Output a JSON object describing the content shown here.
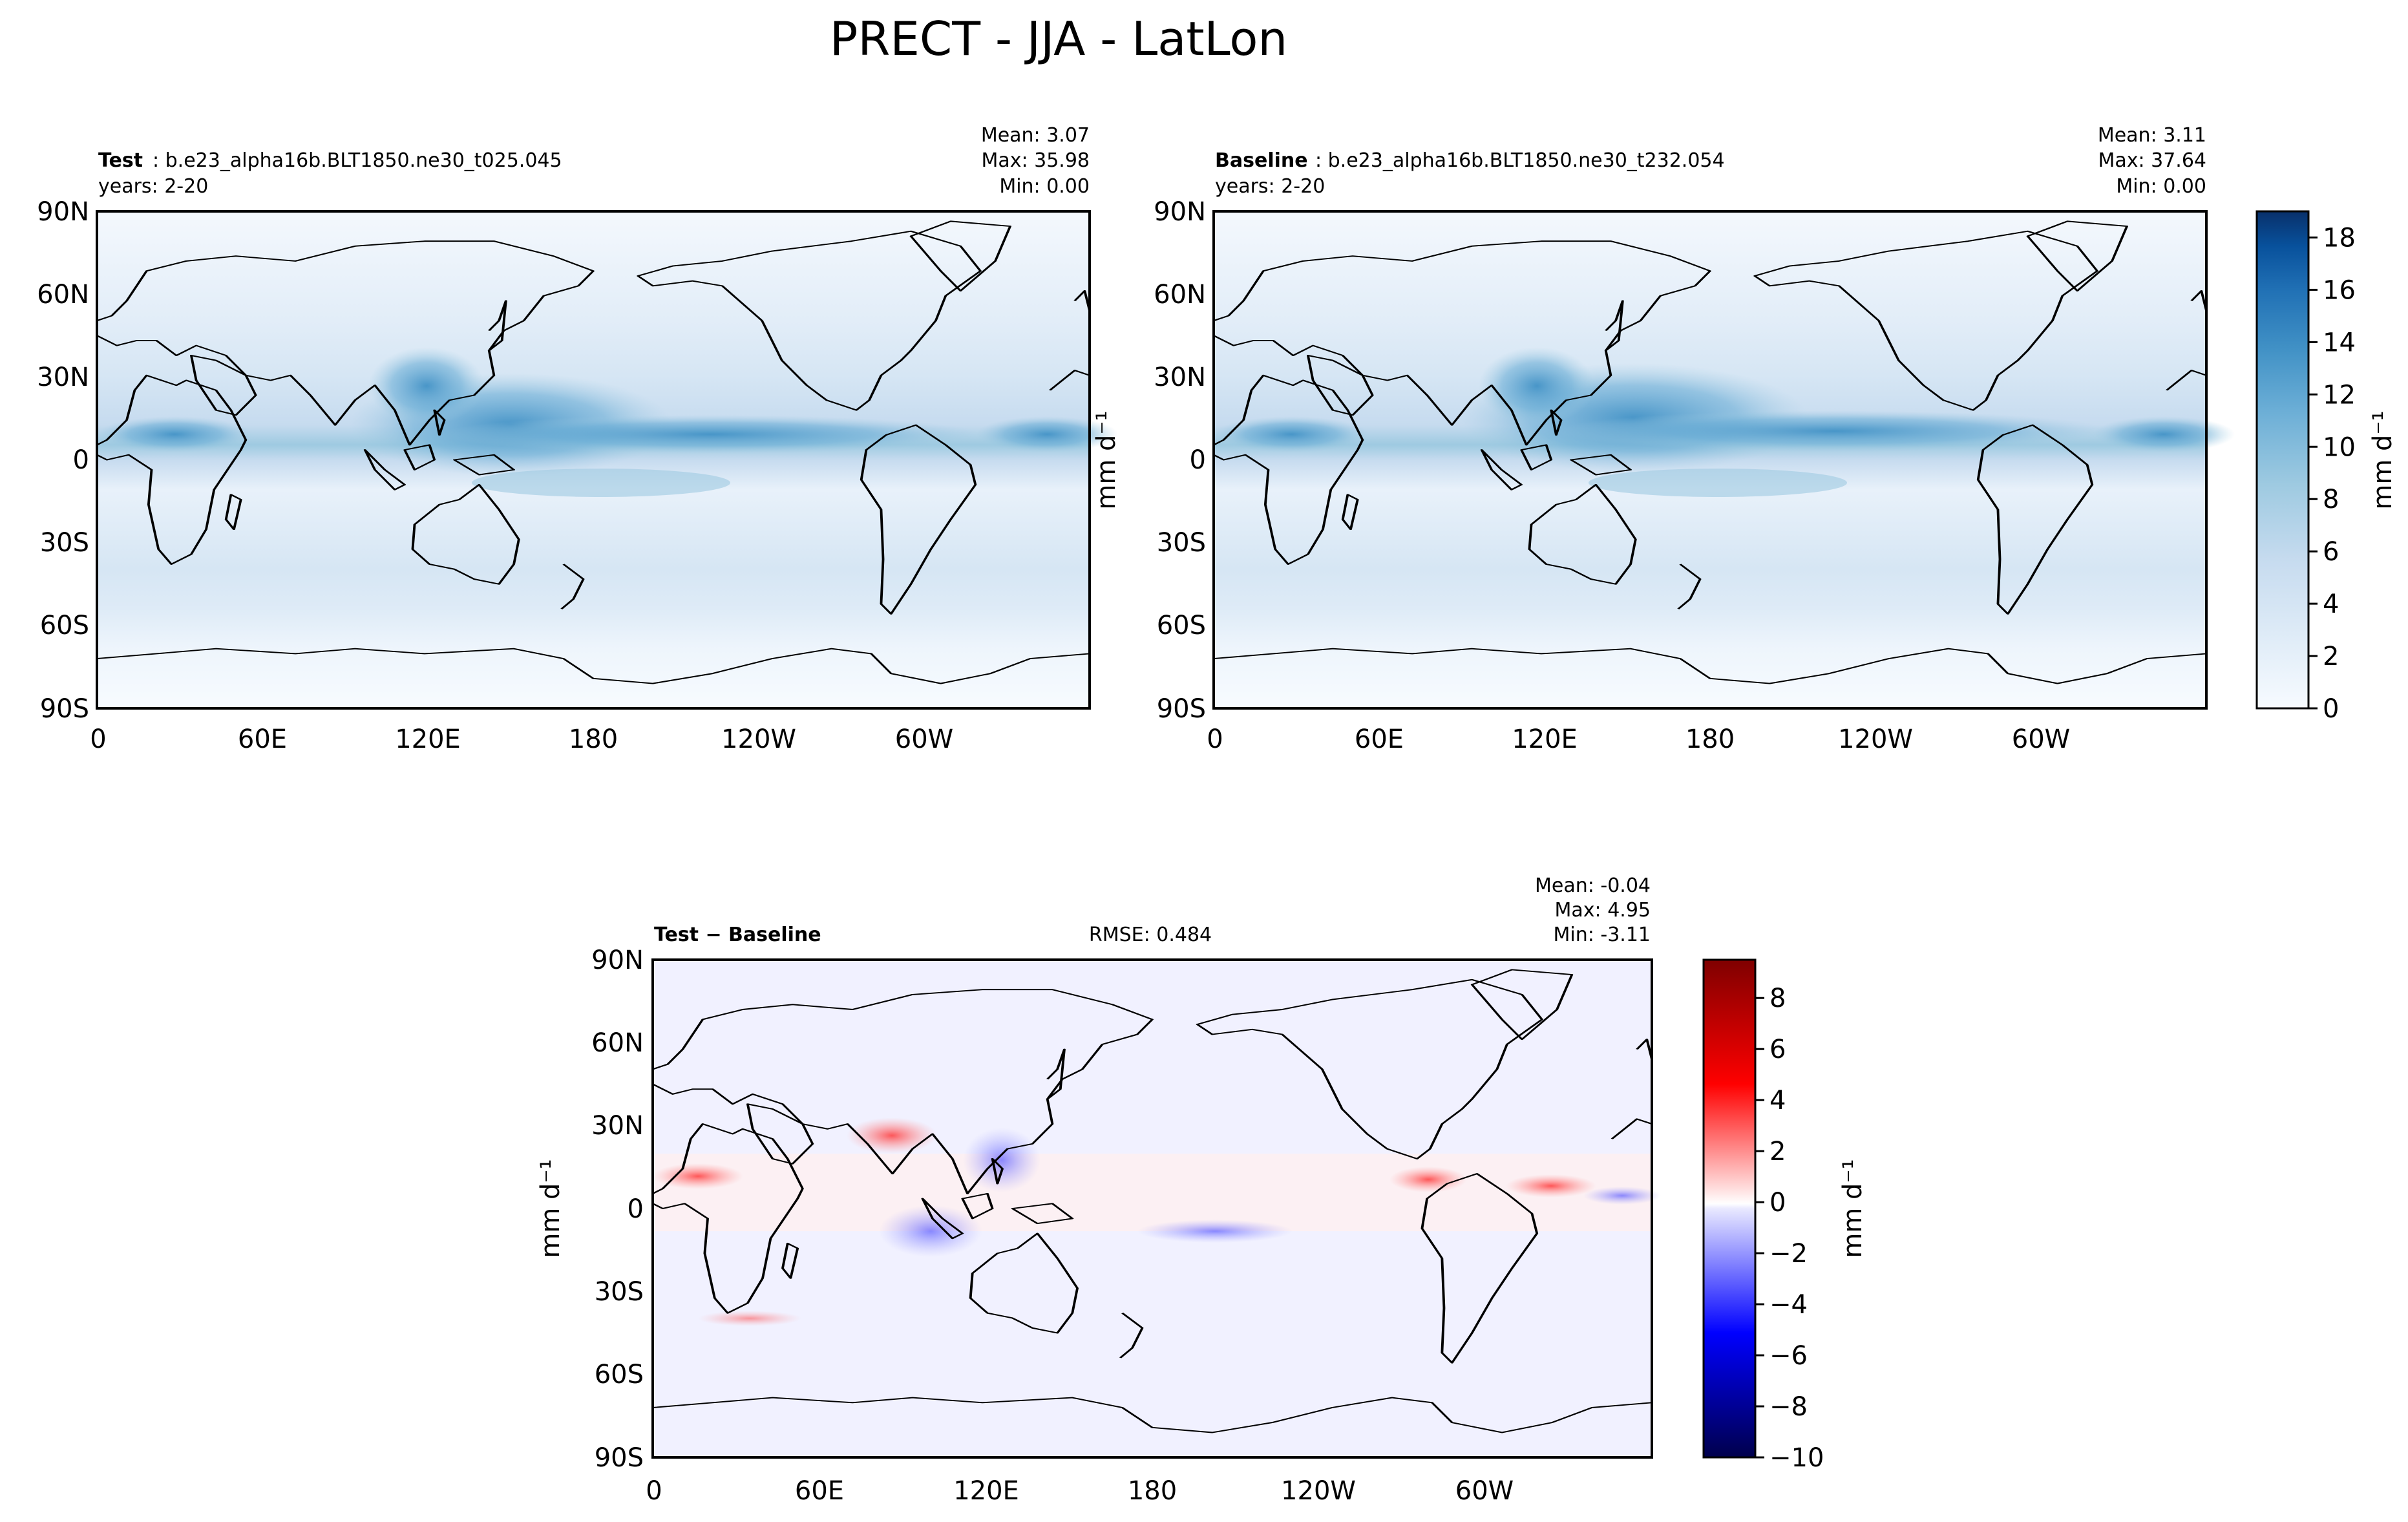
{
  "title": "PRECT - JJA - LatLon",
  "units_label": "mm d⁻¹",
  "panels": {
    "test": {
      "label_bold": "Test",
      "label_rest": ": b.e23_alpha16b.BLT1850.ne30_t025.045",
      "years": "years: 2-20",
      "stats": [
        "Mean:  3.07",
        "Max: 35.98",
        "Min:  0.00"
      ]
    },
    "baseline": {
      "label_bold": "Baseline",
      "label_rest": ": b.e23_alpha16b.BLT1850.ne30_t232.054",
      "years": "years: 2-20",
      "stats": [
        "Mean:  3.11",
        "Max: 37.64",
        "Min:  0.00"
      ]
    },
    "diff": {
      "label": "Test − Baseline",
      "rmse": "RMSE: 0.484",
      "stats": [
        "Mean: -0.04",
        "Max:  4.95",
        "Min: -3.11"
      ]
    }
  },
  "axes": {
    "x_ticks": [
      "0",
      "60E",
      "120E",
      "180",
      "120W",
      "60W"
    ],
    "y_ticks": [
      "90N",
      "60N",
      "30N",
      "0",
      "30S",
      "60S",
      "90S"
    ]
  },
  "colorbars": {
    "precip": {
      "ticks": [
        "0",
        "2",
        "4",
        "6",
        "8",
        "10",
        "12",
        "14",
        "16",
        "18"
      ],
      "min": 0,
      "max": 19,
      "colors": [
        "#f7fbff",
        "#08306b"
      ]
    },
    "diff": {
      "ticks": [
        "−10",
        "−8",
        "−6",
        "−4",
        "−2",
        "0",
        "2",
        "4",
        "6",
        "8"
      ],
      "min": -10,
      "max": 9.5,
      "colors": [
        "#00004c",
        "#0000ff",
        "#ffffff",
        "#ff0000",
        "#7f0000"
      ]
    }
  },
  "chart_data": [
    {
      "type": "heatmap",
      "title": "Test",
      "subtitle": "b.e23_alpha16b.BLT1850.ne30_t025.045",
      "xlabel": "",
      "ylabel": "",
      "xlim": [
        0,
        360
      ],
      "ylim": [
        -90,
        90
      ],
      "x_ticks": [
        "0",
        "60E",
        "120E",
        "180",
        "120W",
        "60W"
      ],
      "y_ticks": [
        "90N",
        "60N",
        "30N",
        "0",
        "30S",
        "60S",
        "90S"
      ],
      "colorbar_label": "mm d⁻¹",
      "colorbar_range": [
        0,
        19
      ],
      "stats": {
        "mean": 3.07,
        "max": 35.98,
        "min": 0.0
      }
    },
    {
      "type": "heatmap",
      "title": "Baseline",
      "subtitle": "b.e23_alpha16b.BLT1850.ne30_t232.054",
      "xlabel": "",
      "ylabel": "",
      "xlim": [
        0,
        360
      ],
      "ylim": [
        -90,
        90
      ],
      "x_ticks": [
        "0",
        "60E",
        "120E",
        "180",
        "120W",
        "60W"
      ],
      "y_ticks": [
        "90N",
        "60N",
        "30N",
        "0",
        "30S",
        "60S",
        "90S"
      ],
      "colorbar_label": "mm d⁻¹",
      "colorbar_range": [
        0,
        19
      ],
      "stats": {
        "mean": 3.11,
        "max": 37.64,
        "min": 0.0
      }
    },
    {
      "type": "heatmap",
      "title": "Test − Baseline",
      "xlabel": "",
      "ylabel": "",
      "xlim": [
        0,
        360
      ],
      "ylim": [
        -90,
        90
      ],
      "x_ticks": [
        "0",
        "60E",
        "120E",
        "180",
        "120W",
        "60W"
      ],
      "y_ticks": [
        "90N",
        "60N",
        "30N",
        "0",
        "30S",
        "60S",
        "90S"
      ],
      "colorbar_label": "mm d⁻¹",
      "colorbar_range": [
        -10,
        9.5
      ],
      "stats": {
        "mean": -0.04,
        "max": 4.95,
        "min": -3.11,
        "rmse": 0.484
      }
    }
  ]
}
